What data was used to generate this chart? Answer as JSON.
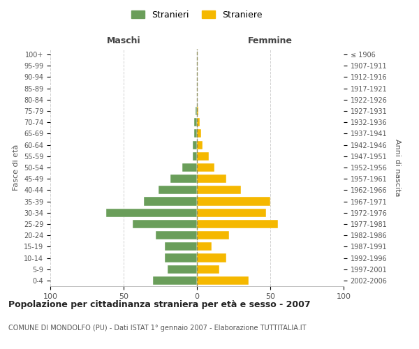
{
  "age_groups": [
    "0-4",
    "5-9",
    "10-14",
    "15-19",
    "20-24",
    "25-29",
    "30-34",
    "35-39",
    "40-44",
    "45-49",
    "50-54",
    "55-59",
    "60-64",
    "65-69",
    "70-74",
    "75-79",
    "80-84",
    "85-89",
    "90-94",
    "95-99",
    "100+"
  ],
  "birth_years": [
    "2002-2006",
    "1997-2001",
    "1992-1996",
    "1987-1991",
    "1982-1986",
    "1977-1981",
    "1972-1976",
    "1967-1971",
    "1962-1966",
    "1957-1961",
    "1952-1956",
    "1947-1951",
    "1942-1946",
    "1937-1941",
    "1932-1936",
    "1927-1931",
    "1922-1926",
    "1917-1921",
    "1912-1916",
    "1907-1911",
    "≤ 1906"
  ],
  "maschi": [
    30,
    20,
    22,
    22,
    28,
    44,
    62,
    36,
    26,
    18,
    10,
    3,
    3,
    2,
    2,
    1,
    0,
    0,
    0,
    0,
    0
  ],
  "femmine": [
    35,
    15,
    20,
    10,
    22,
    55,
    47,
    50,
    30,
    20,
    12,
    8,
    4,
    3,
    2,
    1,
    0,
    0,
    0,
    0,
    0
  ],
  "male_color": "#6a9e5a",
  "female_color": "#f5b800",
  "center_line_color": "#888855",
  "grid_color": "#cccccc",
  "bg_color": "#ffffff",
  "title": "Popolazione per cittadinanza straniera per età e sesso - 2007",
  "subtitle": "COMUNE DI MONDOLFO (PU) - Dati ISTAT 1° gennaio 2007 - Elaborazione TUTTITALIA.IT",
  "xlabel_left": "Maschi",
  "xlabel_right": "Femmine",
  "ylabel_left": "Fasce di età",
  "ylabel_right": "Anni di nascita",
  "legend_male": "Stranieri",
  "legend_female": "Straniere",
  "xlim": 100
}
